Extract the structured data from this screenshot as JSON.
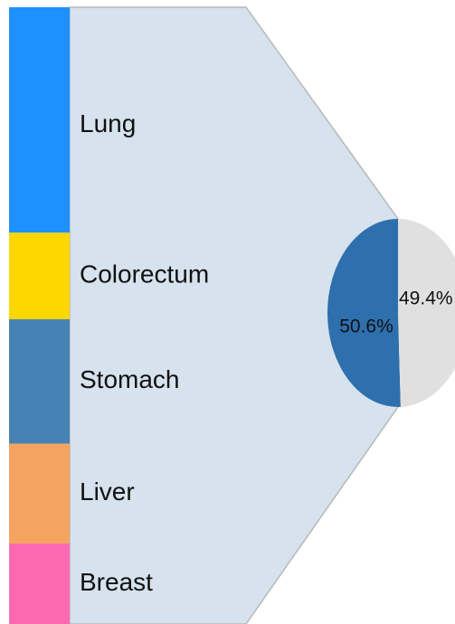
{
  "chart_data": {
    "type": "bar_of_pie",
    "values": [
      50.6,
      49.4
    ],
    "value_labels": [
      "50.6%",
      "49.4%"
    ],
    "colors": [
      "#2e6fad",
      "#e0e0e0"
    ],
    "bar": {
      "categories": [
        "Lung",
        "Colorectum",
        "Stomach",
        "Liver",
        "Breast"
      ],
      "values": [
        18.5,
        7.1,
        10.2,
        8.2,
        6.6
      ],
      "colors": [
        "#1e90ff",
        "#ffd700",
        "#4682b4",
        "#f4a460",
        "#ff69b4"
      ]
    }
  }
}
